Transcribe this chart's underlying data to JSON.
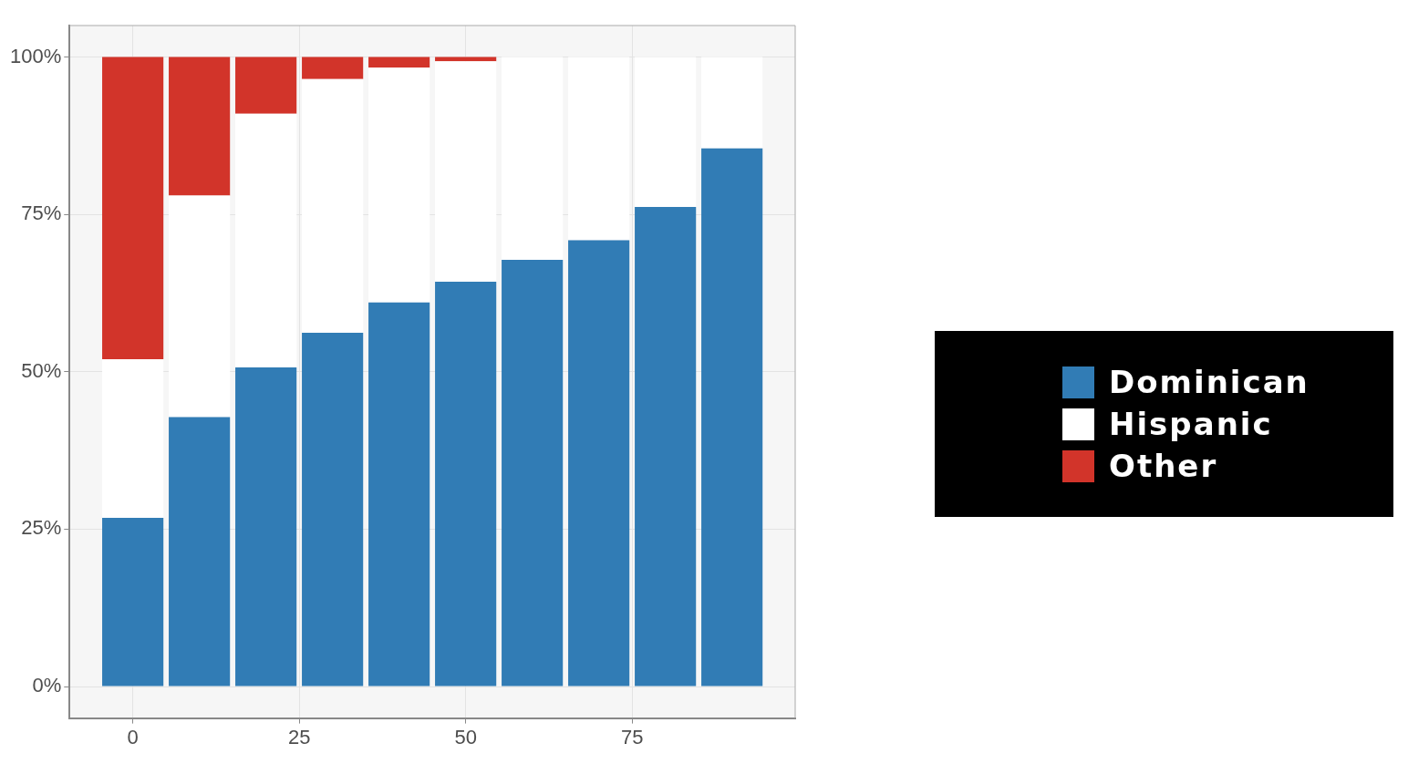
{
  "chart_data": {
    "type": "bar",
    "stacked": true,
    "x": [
      0,
      10,
      20,
      30,
      40,
      50,
      60,
      70,
      80,
      90
    ],
    "series": [
      {
        "name": "Dominican",
        "color": "#317cb5",
        "values": [
          26.8,
          42.8,
          50.7,
          56.2,
          61.0,
          64.3,
          67.8,
          70.9,
          76.2,
          85.5
        ]
      },
      {
        "name": "Hispanic",
        "color": "#ffffff",
        "values": [
          25.2,
          35.2,
          40.3,
          40.3,
          37.3,
          35.0,
          32.2,
          29.1,
          23.8,
          14.5
        ]
      },
      {
        "name": "Other",
        "color": "#d2342a",
        "values": [
          48,
          22,
          9,
          3.5,
          1.7,
          0.7,
          0,
          0,
          0,
          0
        ]
      }
    ],
    "xlim": [
      -9.5,
      99.5
    ],
    "xticks": [
      0,
      25,
      50,
      75
    ],
    "ylim": [
      -5,
      105
    ],
    "yticks": [
      {
        "value": 0,
        "label": "0%"
      },
      {
        "value": 25,
        "label": "25%"
      },
      {
        "value": 50,
        "label": "50%"
      },
      {
        "value": 75,
        "label": "75%"
      },
      {
        "value": 100,
        "label": "100%"
      }
    ],
    "grid": true,
    "legend": "right"
  }
}
